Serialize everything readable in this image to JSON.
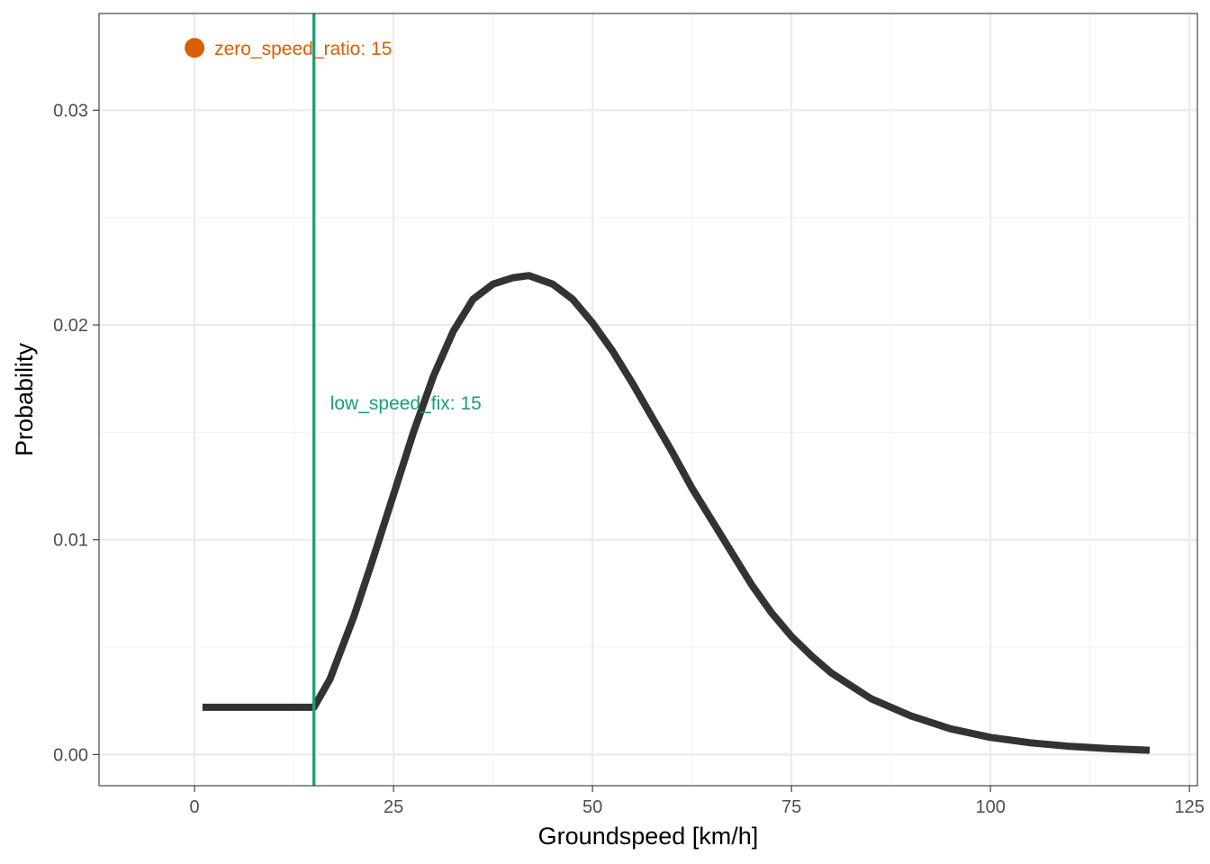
{
  "chart_data": {
    "type": "line",
    "xlabel": "Groundspeed [km/h]",
    "ylabel": "Probability",
    "xlim": [
      -12,
      126
    ],
    "ylim": [
      -0.00145,
      0.0345
    ],
    "x_ticks": [
      0,
      25,
      50,
      75,
      100,
      125
    ],
    "x_tick_labels": [
      "0",
      "25",
      "50",
      "75",
      "100",
      "125"
    ],
    "x_minor_ticks": [
      12.5,
      37.5,
      62.5,
      87.5,
      112.5
    ],
    "y_ticks": [
      0.0,
      0.01,
      0.02,
      0.03
    ],
    "y_tick_labels": [
      "0.00",
      "0.01",
      "0.02",
      "0.03"
    ],
    "y_minor_ticks": [
      0.005,
      0.015,
      0.025
    ],
    "grid": true,
    "series": [
      {
        "name": "probability",
        "color": "#333333",
        "x": [
          1,
          5,
          10,
          15,
          17,
          20,
          22.5,
          25,
          27.5,
          30,
          32.5,
          35,
          37.5,
          40,
          42,
          45,
          47.5,
          50,
          52.5,
          55,
          57.5,
          60,
          62.5,
          65,
          67.5,
          70,
          72.5,
          75,
          77.5,
          80,
          85,
          90,
          95,
          100,
          105,
          110,
          115,
          120
        ],
        "values": [
          0.0022,
          0.0022,
          0.0022,
          0.0022,
          0.0035,
          0.0064,
          0.0092,
          0.0121,
          0.015,
          0.0176,
          0.0197,
          0.0212,
          0.0219,
          0.0222,
          0.0223,
          0.0219,
          0.0212,
          0.0201,
          0.0188,
          0.0173,
          0.0157,
          0.0141,
          0.0124,
          0.0109,
          0.0094,
          0.0079,
          0.0066,
          0.0055,
          0.0046,
          0.0038,
          0.0026,
          0.0018,
          0.0012,
          0.0008,
          0.00055,
          0.00038,
          0.00027,
          0.0002
        ]
      }
    ],
    "vline": {
      "x": 15,
      "color": "#1b9e77",
      "label": "low_speed_fix: 15",
      "label_y": 0.0164
    },
    "point": {
      "x": 0,
      "y": 0.0329,
      "color": "#d95f02",
      "label": "zero_speed_ratio: 15"
    }
  }
}
